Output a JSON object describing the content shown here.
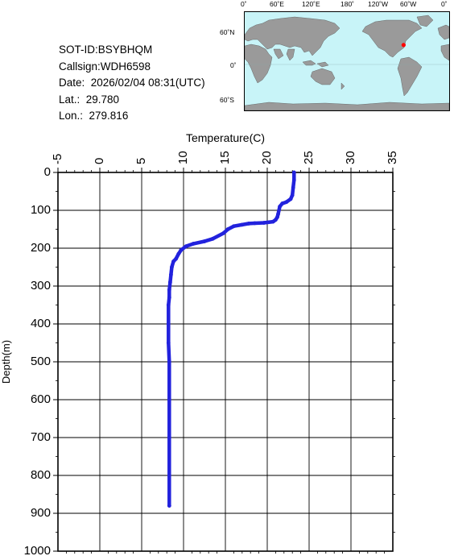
{
  "station": {
    "sot_id": "SOT-ID:BSYBHQM",
    "callsign": "Callsign:WDH6598",
    "date": "Date:  2026/02/04 08:31(UTC)",
    "lat": "Lat.:  29.780",
    "lon": "Lon.:  279.816"
  },
  "map": {
    "lon_labels": [
      "0˚",
      "60˚E",
      "120˚E",
      "180˚",
      "120˚W",
      "60˚W",
      "0˚"
    ],
    "lat_labels": [
      "60˚N",
      "0˚",
      "60˚S"
    ],
    "ocean_color": "#c8f4f8",
    "land_color": "#9a9a9a",
    "marker_color": "#ff0000",
    "marker": {
      "lon": 279.816,
      "lat": 29.78
    }
  },
  "chart_data": {
    "type": "line",
    "xlabel": "Temperature(C)",
    "ylabel": "Depth(m)",
    "xlim": [
      -5,
      35
    ],
    "ylim": [
      1000,
      0
    ],
    "x_ticks": [
      -5,
      0,
      5,
      10,
      15,
      20,
      25,
      30,
      35
    ],
    "y_ticks": [
      0,
      100,
      200,
      300,
      400,
      500,
      600,
      700,
      800,
      900,
      1000
    ],
    "grid": true,
    "line_color": "#2222dd",
    "series": [
      {
        "x": [
          23.2,
          23.2,
          23.1,
          23.0,
          22.8,
          22.3,
          21.8,
          21.5,
          21.3,
          21.2,
          21.0,
          20.7,
          19.6,
          18.5,
          17.8,
          17.0,
          16.0,
          15.3,
          14.8,
          13.5,
          12.5,
          11.2,
          10.3,
          9.7,
          9.4,
          9.1,
          8.8,
          8.6,
          8.5,
          8.4,
          8.3,
          8.3,
          8.2,
          8.2,
          8.2,
          8.3,
          8.3,
          8.3,
          8.3
        ],
        "y": [
          0,
          20,
          40,
          60,
          70,
          78,
          82,
          90,
          110,
          118,
          125,
          130,
          133,
          134,
          135,
          138,
          142,
          150,
          160,
          175,
          182,
          188,
          195,
          205,
          215,
          228,
          235,
          250,
          270,
          290,
          310,
          330,
          350,
          400,
          450,
          500,
          600,
          700,
          880
        ]
      }
    ]
  }
}
